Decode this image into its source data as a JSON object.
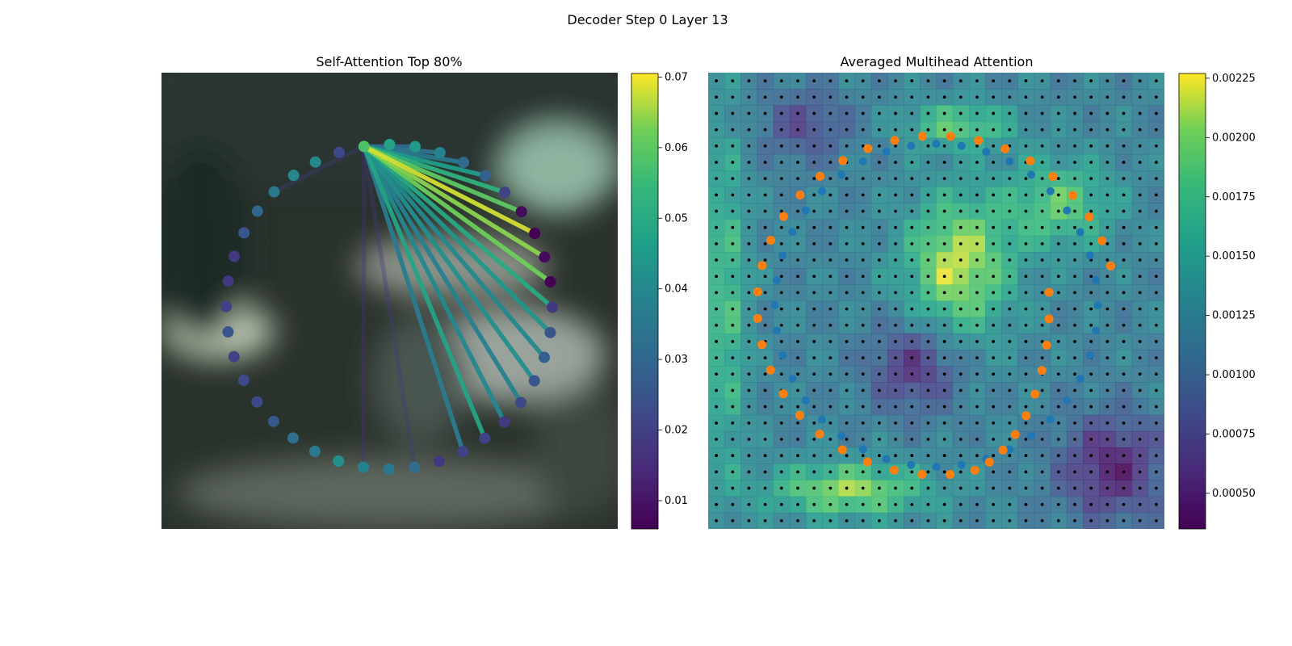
{
  "figure": {
    "suptitle": "Decoder Step 0 Layer 13"
  },
  "chart_data": [
    {
      "type": "scatter",
      "title": "Self-Attention Top 80%",
      "description_source": "points on a ring over a blurred image; lines from the query point to attended points",
      "query_index": 0,
      "ring_values": [
        0.058,
        0.048,
        0.045,
        0.038,
        0.031,
        0.028,
        0.02,
        0.008,
        0.006,
        0.008,
        0.006,
        0.018,
        0.025,
        0.028,
        0.025,
        0.022,
        0.018,
        0.02,
        0.02,
        0.018,
        0.032,
        0.035,
        0.038,
        0.042,
        0.035,
        0.032,
        0.026,
        0.022,
        0.022,
        0.02,
        0.025,
        0.02,
        0.018,
        0.018,
        0.025,
        0.03,
        0.035,
        0.04,
        0.04,
        0.022
      ],
      "edges": [
        {
          "to": 8,
          "value": 0.068
        },
        {
          "to": 9,
          "value": 0.064
        },
        {
          "to": 10,
          "value": 0.062
        },
        {
          "to": 7,
          "value": 0.06
        },
        {
          "to": 6,
          "value": 0.052
        },
        {
          "to": 5,
          "value": 0.046
        },
        {
          "to": 11,
          "value": 0.05
        },
        {
          "to": 12,
          "value": 0.044
        },
        {
          "to": 13,
          "value": 0.04
        },
        {
          "to": 14,
          "value": 0.042
        },
        {
          "to": 15,
          "value": 0.038
        },
        {
          "to": 16,
          "value": 0.04
        },
        {
          "to": 17,
          "value": 0.048
        },
        {
          "to": 18,
          "value": 0.036
        },
        {
          "to": 4,
          "value": 0.035
        },
        {
          "to": 3,
          "value": 0.034
        },
        {
          "to": 2,
          "value": 0.03
        },
        {
          "to": 20,
          "value": 0.018
        },
        {
          "to": 22,
          "value": 0.016
        },
        {
          "to": 36,
          "value": 0.018
        }
      ],
      "colorbar": {
        "min": 0.006,
        "max": 0.0705,
        "ticks": [
          0.01,
          0.02,
          0.03,
          0.04,
          0.05,
          0.06,
          0.07
        ],
        "tick_labels": [
          "0.01",
          "0.02",
          "0.03",
          "0.04",
          "0.05",
          "0.06",
          "0.07"
        ],
        "colormap": "viridis"
      }
    },
    {
      "type": "heatmap",
      "title": "Averaged Multihead Attention",
      "grid_size": 28,
      "colorbar": {
        "min": 0.00035,
        "max": 0.00227,
        "ticks": [
          0.0005,
          0.00075,
          0.001,
          0.00125,
          0.0015,
          0.00175,
          0.002,
          0.00225
        ],
        "tick_labels": [
          "0.00050",
          "0.00075",
          "0.00100",
          "0.00125",
          "0.00150",
          "0.00175",
          "0.00200",
          "0.00225"
        ],
        "colormap": "viridis"
      },
      "series": [
        {
          "color": "#1f77b4"
        },
        {
          "color": "#ff7f0e"
        }
      ]
    }
  ]
}
